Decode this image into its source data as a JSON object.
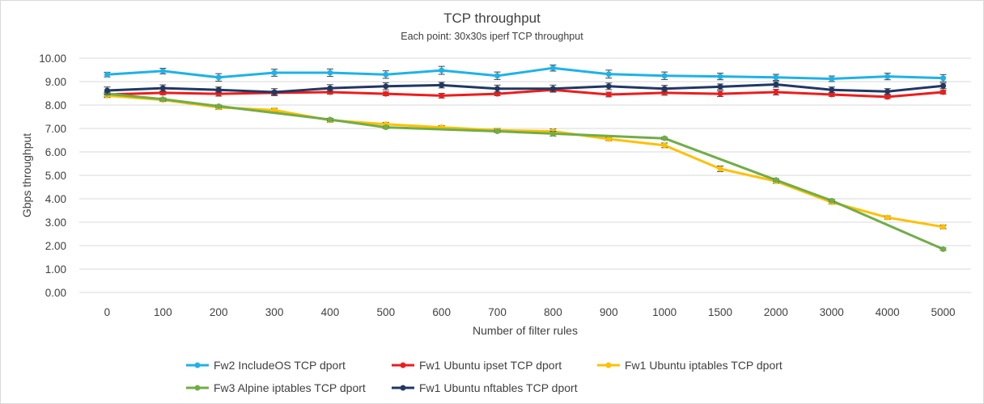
{
  "chart_data": {
    "type": "line",
    "title": "TCP throughput",
    "subtitle": "Each point: 30x30s iperf TCP throughput",
    "xlabel": "Number of filter rules",
    "ylabel": "Gbps throughput",
    "categories": [
      "0",
      "100",
      "200",
      "300",
      "400",
      "500",
      "600",
      "700",
      "800",
      "900",
      "1000",
      "1500",
      "2000",
      "3000",
      "4000",
      "5000"
    ],
    "ylim": [
      0,
      10
    ],
    "ytick_step": 1,
    "yticks": [
      "0.00",
      "1.00",
      "2.00",
      "3.00",
      "4.00",
      "5.00",
      "6.00",
      "7.00",
      "8.00",
      "9.00",
      "10.00"
    ],
    "grid": true,
    "legend_position": "bottom",
    "series": [
      {
        "name": "Fw2 IncludeOS TCP dport",
        "color": "#1eb2e8",
        "values": [
          9.3,
          9.45,
          9.18,
          9.38,
          9.38,
          9.3,
          9.48,
          9.25,
          9.58,
          9.32,
          9.25,
          9.22,
          9.18,
          9.12,
          9.22,
          9.15
        ],
        "errors": [
          0.1,
          0.12,
          0.16,
          0.15,
          0.16,
          0.16,
          0.17,
          0.16,
          0.13,
          0.17,
          0.16,
          0.14,
          0.13,
          0.12,
          0.14,
          0.15
        ]
      },
      {
        "name": "Fw1 Ubuntu ipset TCP dport",
        "color": "#ee1c1c",
        "values": [
          8.45,
          8.52,
          8.48,
          8.52,
          8.55,
          8.48,
          8.4,
          8.48,
          8.65,
          8.45,
          8.52,
          8.48,
          8.55,
          8.45,
          8.35,
          8.55
        ],
        "errors": [
          0.1,
          0.08,
          0.1,
          0.08,
          0.08,
          0.08,
          0.1,
          0.08,
          0.08,
          0.1,
          0.1,
          0.12,
          0.12,
          0.08,
          0.08,
          0.08
        ]
      },
      {
        "name": "Fw1 Ubuntu iptables TCP dport",
        "color": "#ffc000",
        "values": [
          8.4,
          8.22,
          7.9,
          7.78,
          7.35,
          7.18,
          7.05,
          6.92,
          6.88,
          6.55,
          6.28,
          5.28,
          4.75,
          3.85,
          3.2,
          2.8
        ],
        "errors": [
          0.08,
          0.07,
          0.08,
          0.08,
          0.08,
          0.08,
          0.07,
          0.08,
          0.1,
          0.07,
          0.1,
          0.12,
          0.09,
          0.07,
          0.07,
          0.08
        ]
      },
      {
        "name": "Fw3 Alpine iptables TCP dport",
        "color": "#70ad47",
        "values": [
          8.48,
          8.25,
          7.95,
          null,
          7.38,
          7.05,
          null,
          6.88,
          6.78,
          null,
          6.58,
          null,
          4.8,
          3.92,
          null,
          1.85
        ],
        "errors": [
          0.05,
          0.05,
          0.05,
          null,
          0.05,
          0.05,
          null,
          0.05,
          0.1,
          null,
          0.05,
          null,
          0.05,
          0.05,
          null,
          0.05
        ]
      },
      {
        "name": "Fw1 Ubuntu nftables TCP dport",
        "color": "#203864",
        "values": [
          8.62,
          8.72,
          8.65,
          8.55,
          8.72,
          8.8,
          8.85,
          8.7,
          8.7,
          8.8,
          8.7,
          8.78,
          8.88,
          8.65,
          8.58,
          8.82
        ],
        "errors": [
          0.15,
          0.14,
          0.12,
          0.15,
          0.15,
          0.15,
          0.12,
          0.15,
          0.15,
          0.14,
          0.14,
          0.12,
          0.12,
          0.12,
          0.12,
          0.12
        ]
      }
    ]
  }
}
